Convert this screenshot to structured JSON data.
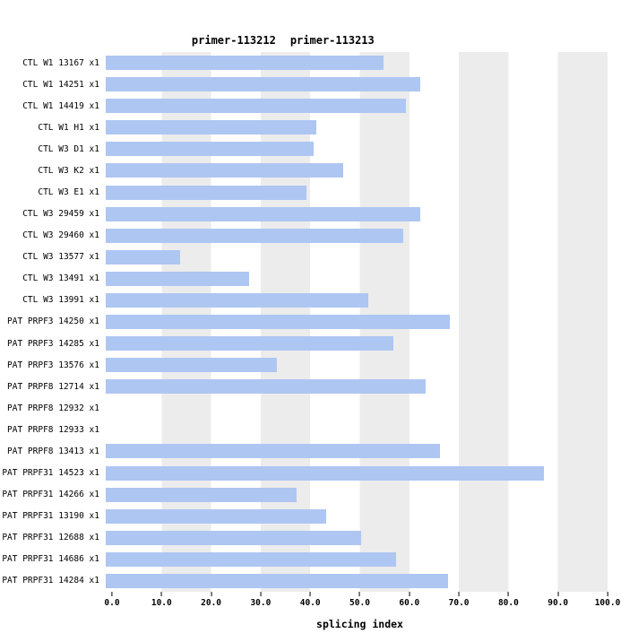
{
  "title": {
    "parts": [
      "primer-113212",
      "primer-113213"
    ]
  },
  "chart_data": {
    "type": "bar",
    "orientation": "horizontal",
    "title": "primer-113212  primer-113213",
    "xlabel": "splicing index",
    "ylabel": "",
    "xlim": [
      0,
      100
    ],
    "x_ticks": [
      "0.0",
      "10.0",
      "20.0",
      "30.0",
      "40.0",
      "50.0",
      "60.0",
      "70.0",
      "80.0",
      "90.0",
      "100.0"
    ],
    "grid": "alternating-vertical-bands",
    "legend": "none",
    "bar_color": "#aec6f2",
    "band_color": "#ececec",
    "categories": [
      "CTL W1 13167 x1",
      "CTL W1 14251 x1",
      "CTL W1 14419 x1",
      "CTL W1 H1 x1",
      "CTL W3 D1 x1",
      "CTL W3 K2 x1",
      "CTL W3 E1 x1",
      "CTL W3 29459 x1",
      "CTL W3 29460 x1",
      "CTL W3 13577 x1",
      "CTL W3 13491 x1",
      "CTL W3 13991 x1",
      "PAT PRPF3 14250 x1",
      "PAT PRPF3 14285 x1",
      "PAT PRPF3 13576 x1",
      "PAT PRPF8 12714 x1",
      "PAT PRPF8 12932 x1",
      "PAT PRPF8 12933 x1",
      "PAT PRPF8 13413 x1",
      "PAT PRPF31 14523 x1",
      "PAT PRPF31 14266 x1",
      "PAT PRPF31 13190 x1",
      "PAT PRPF31 12688 x1",
      "PAT PRPF31 14686 x1",
      "PAT PRPF31 14284 x1"
    ],
    "values": [
      56,
      63.5,
      60.5,
      42.5,
      42,
      48,
      40.5,
      63.5,
      60,
      15,
      29,
      53,
      69.5,
      58,
      34.5,
      64.5,
      0,
      0,
      67.5,
      88.5,
      38.5,
      44.5,
      51.5,
      58.5,
      69
    ]
  }
}
